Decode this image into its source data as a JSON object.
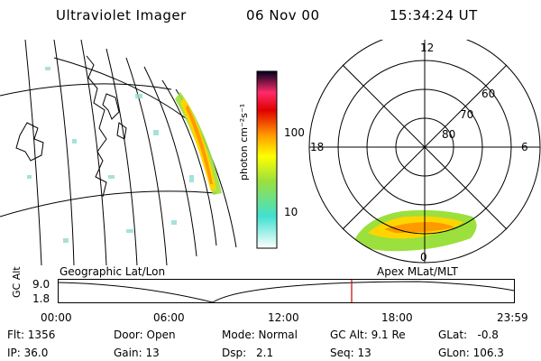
{
  "header": {
    "instrument": "Ultraviolet Imager",
    "date": "06 Nov 00",
    "time": "15:34:24 UT"
  },
  "colorbar": {
    "unit_label": "photon cm⁻²s⁻¹",
    "tick_labels": [
      "100",
      "10"
    ]
  },
  "polar_plot": {
    "mlt_labels": {
      "top": "12",
      "left": "18",
      "right": "6",
      "bottom": "0"
    },
    "lat_labels": [
      "60",
      "70",
      "80"
    ]
  },
  "map_labels": {
    "left": "Geographic Lat/Lon",
    "right": "Apex MLat/MLT"
  },
  "altitude_panel": {
    "axis_label": "GC Alt",
    "y_ticks": [
      "9.0",
      "1.8"
    ],
    "x_ticks": [
      "00:00",
      "06:00",
      "12:00",
      "18:00",
      "23:59"
    ]
  },
  "info": {
    "row1": {
      "flt": "Flt: 1356",
      "door": "Door: Open",
      "mode": "Mode: Normal",
      "gcalt": "GC Alt: 9.1 Re",
      "glat": "GLat:   -0.8"
    },
    "row2": {
      "ip": "IP: 36.0",
      "gain": "Gain: 13",
      "dsp_label": "Dsp:",
      "dsp_value": "2.1",
      "seq": "Seq: 13",
      "glon": "GLon: 106.3"
    }
  },
  "colors": {
    "marker": "#cc0000",
    "colorbar_stops": [
      "#ffffff",
      "#40e0d0",
      "#9be03c",
      "#ffff00",
      "#ff9900",
      "#e00000",
      "#ff2a6a",
      "#000020"
    ]
  }
}
